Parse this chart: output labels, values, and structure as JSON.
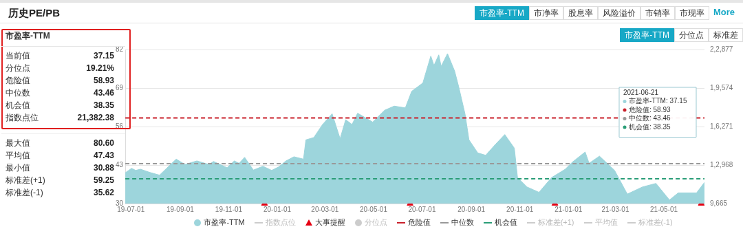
{
  "chart_data": {
    "type": "area",
    "title": "历史PE/PB",
    "series": [
      {
        "name": "市盈率-TTM",
        "color": "#9dd5dc",
        "x": [
          "2019-06-24",
          "2019-07-02",
          "2019-07-07",
          "2019-07-13",
          "2019-07-25",
          "2019-08-06",
          "2019-08-27",
          "2019-09-07",
          "2019-09-22",
          "2019-10-07",
          "2019-10-13",
          "2019-10-30",
          "2019-11-08",
          "2019-11-14",
          "2019-11-21",
          "2019-12-02",
          "2019-12-14",
          "2019-12-25",
          "2020-01-03",
          "2020-01-12",
          "2020-01-22",
          "2020-02-03",
          "2020-02-06",
          "2020-02-16",
          "2020-02-27",
          "2020-03-10",
          "2020-03-20",
          "2020-03-27",
          "2020-04-04",
          "2020-04-11",
          "2020-04-30",
          "2020-05-15",
          "2020-05-27",
          "2020-06-10",
          "2020-06-18",
          "2020-07-02",
          "2020-07-12",
          "2020-07-16",
          "2020-07-22",
          "2020-07-25",
          "2020-08-02",
          "2020-08-11",
          "2020-08-16",
          "2020-08-24",
          "2020-08-29",
          "2020-09-09",
          "2020-09-19",
          "2020-10-01",
          "2020-10-13",
          "2020-10-25",
          "2020-10-29",
          "2020-11-10",
          "2020-11-25",
          "2020-12-11",
          "2020-12-28",
          "2021-01-06",
          "2021-01-22",
          "2021-01-27",
          "2021-02-09",
          "2021-02-28",
          "2021-03-16",
          "2021-04-04",
          "2021-04-21",
          "2021-05-08",
          "2021-05-19",
          "2021-06-11",
          "2021-06-21"
        ],
        "values": [
          40.4,
          41.9,
          41.2,
          41.6,
          40.5,
          39.6,
          45.0,
          43.2,
          44.4,
          43.2,
          44.2,
          42.1,
          44.4,
          43.6,
          45.6,
          41.3,
          42.6,
          41.2,
          42.4,
          44.4,
          45.8,
          45.0,
          51.5,
          52.3,
          56.7,
          60.3,
          51.9,
          58.3,
          56.7,
          60.5,
          57.5,
          61.5,
          62.9,
          62.3,
          67.9,
          70.7,
          79.8,
          76.6,
          80.2,
          76.3,
          80.6,
          74.7,
          69.5,
          60.3,
          51.5,
          47.1,
          46.3,
          49.9,
          53.3,
          48.7,
          38.8,
          35.6,
          33.8,
          38.8,
          41.6,
          44.0,
          47.4,
          43.6,
          46.0,
          41.2,
          33.2,
          35.6,
          36.8,
          31.2,
          33.6,
          33.6,
          37.15
        ]
      },
      {
        "name": "大事提醒",
        "type": "scatter",
        "marker": "triangle",
        "color": "#e60012",
        "x": [
          "2019-12-16",
          "2020-06-16",
          "2020-12-15",
          "2021-06-17"
        ],
        "values": [
          30,
          30,
          30,
          30
        ]
      }
    ],
    "xlim": [
      "2019-06-24",
      "2021-06-21"
    ],
    "xticks": [
      {
        "value": "2019-07-01",
        "label": "19-07-01"
      },
      {
        "value": "2019-09-01",
        "label": "19-09-01"
      },
      {
        "value": "2019-11-01",
        "label": "19-11-01"
      },
      {
        "value": "2020-01-01",
        "label": "20-01-01"
      },
      {
        "value": "2020-03-01",
        "label": "20-03-01"
      },
      {
        "value": "2020-05-01",
        "label": "20-05-01"
      },
      {
        "value": "2020-07-01",
        "label": "20-07-01"
      },
      {
        "value": "2020-09-01",
        "label": "20-09-01"
      },
      {
        "value": "2020-11-01",
        "label": "20-11-01"
      },
      {
        "value": "2021-01-01",
        "label": "21-01-01"
      },
      {
        "value": "2021-03-01",
        "label": "21-03-01"
      },
      {
        "value": "2021-05-01",
        "label": "21-05-01"
      }
    ],
    "ylim": [
      30,
      82
    ],
    "yticks": [
      30,
      43,
      56,
      69,
      82
    ],
    "ref_lines": [
      {
        "axis": "y",
        "value": 58.93,
        "label": "危险值",
        "color": "#c9202b",
        "line_style": "dashed"
      },
      {
        "axis": "y",
        "value": 43.46,
        "label": "中位数",
        "color": "#999999",
        "line_style": "dashed"
      },
      {
        "axis": "y",
        "value": 38.35,
        "label": "机会值",
        "color": "#2a9d77",
        "line_style": "dashed"
      }
    ],
    "grid": "y",
    "legend": "bottom",
    "annotations": [
      "市盈率-TTM",
      "当前值 37.15",
      "分位点 19.21%",
      "危险值 58.93",
      "中位数 43.46",
      "机会值 38.35",
      "指数点位 21,382.38",
      "最大值 80.60",
      "平均值 47.43",
      "最小值 30.88",
      "标准差(+1) 59.25",
      "标准差(-1) 35.62",
      "2021-06-21",
      "市盈率-TTM: 37.15",
      "危险值: 58.93",
      "中位数: 43.46",
      "机会值: 38.35",
      "市盈率-TTM",
      "市净率",
      "股息率",
      "风险溢价",
      "市销率",
      "市现率",
      "More",
      "市盈率-TTM",
      "分位点",
      "标准差",
      "指数点位",
      "分位点",
      "标准差(+1)",
      "平均值",
      "标准差(-1)",
      "9,665",
      "1,2,968",
      "1,6,271",
      "1,9,574",
      "2,2,877"
    ]
  }
}
